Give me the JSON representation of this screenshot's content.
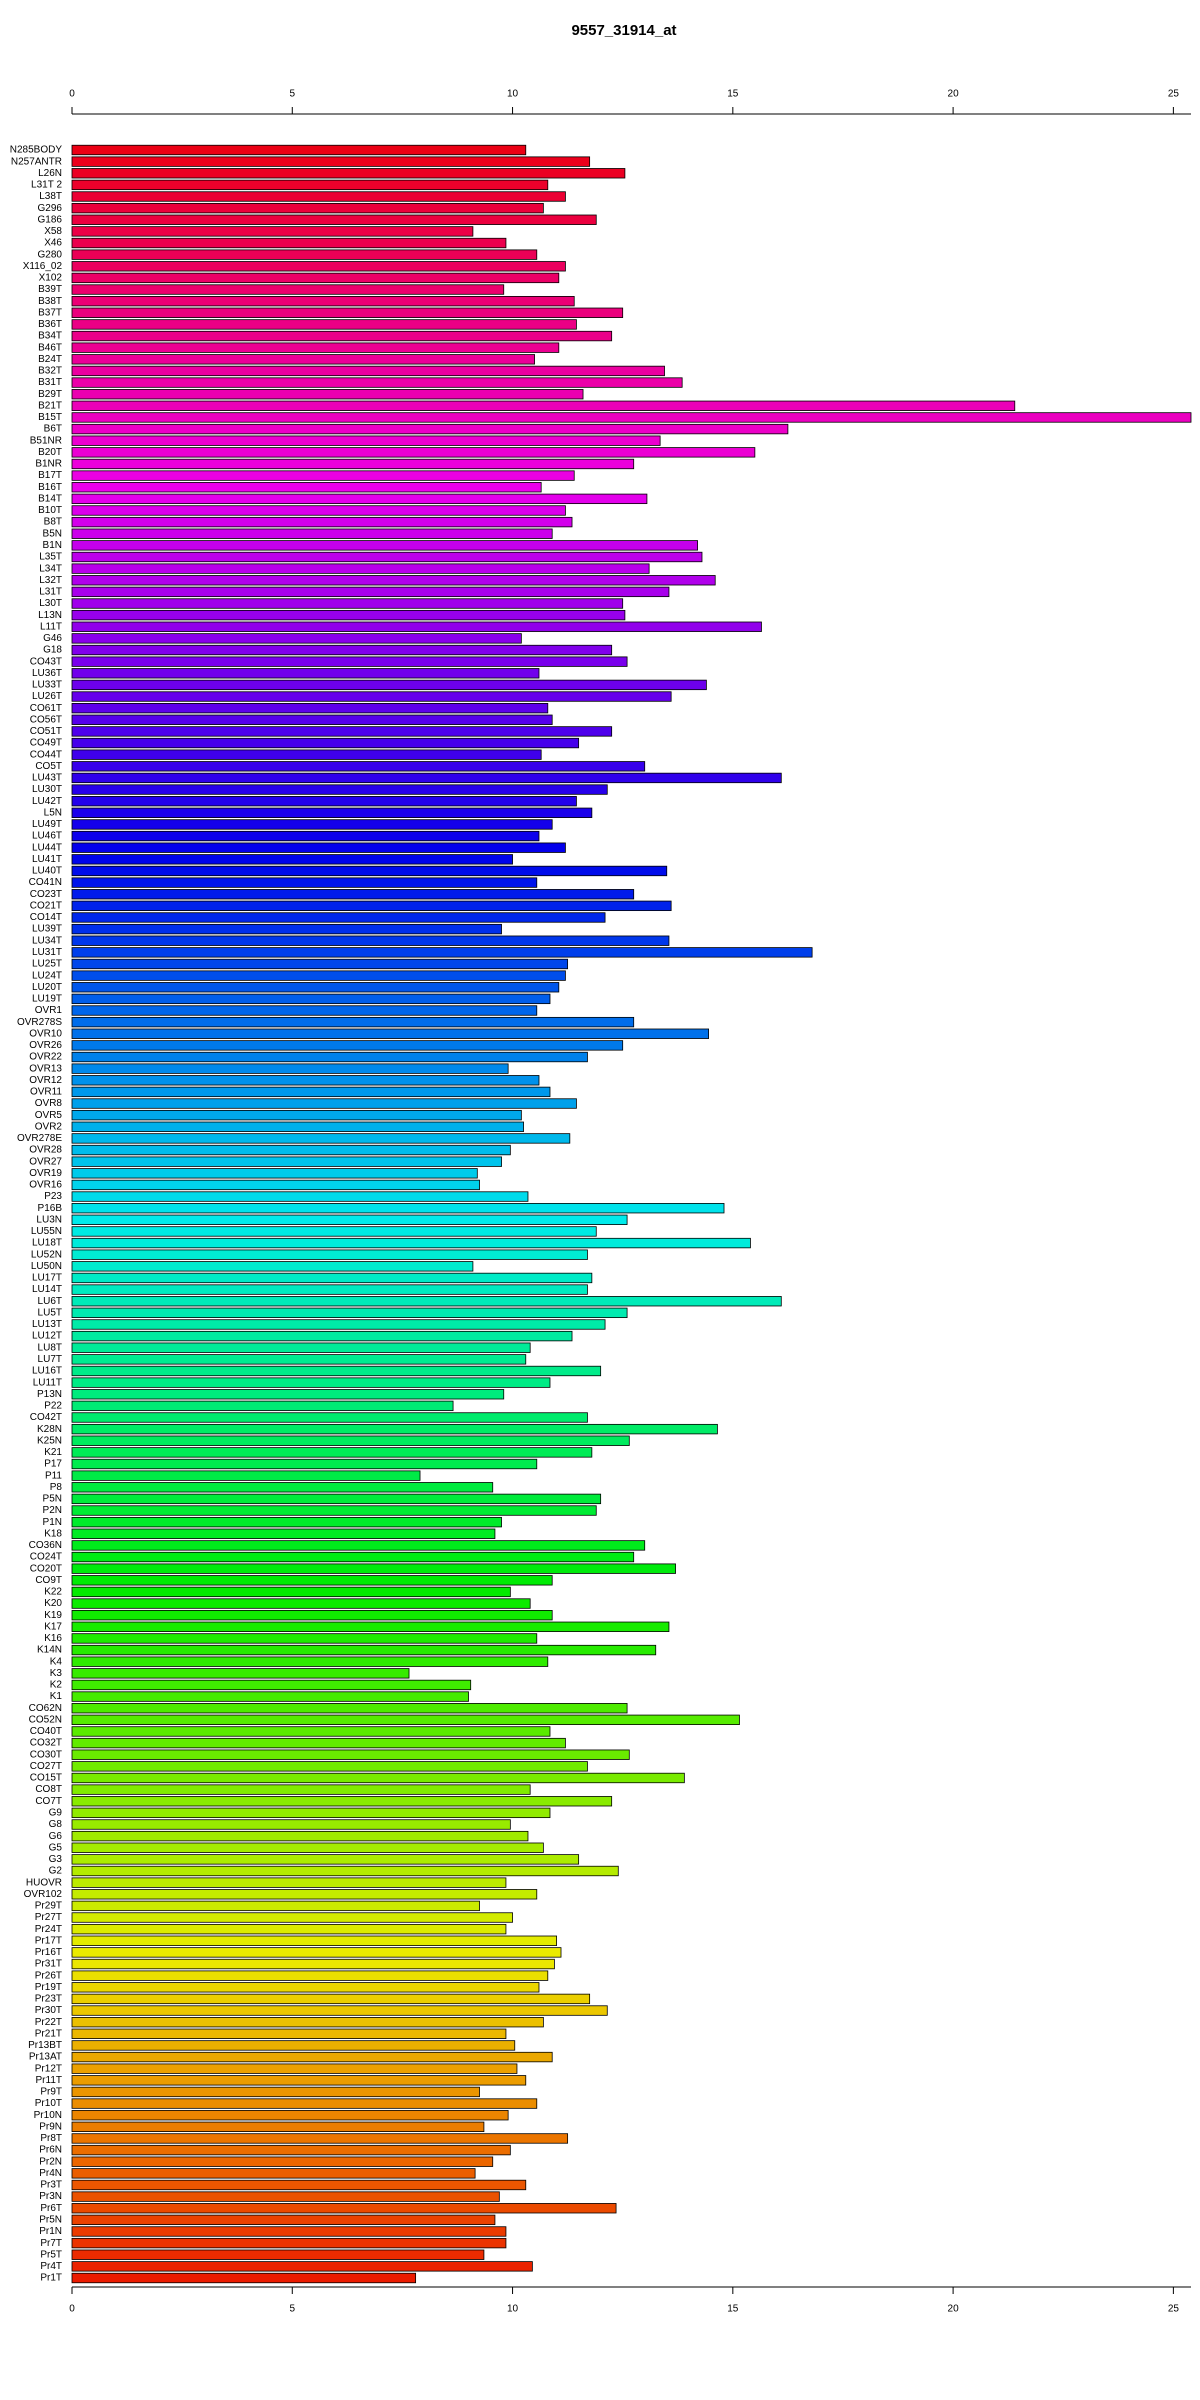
{
  "chart_data": {
    "type": "bar",
    "orientation": "horizontal",
    "title": "9557_31914_at",
    "categories": [
      "N285BODY",
      "N257ANTR",
      "L26N",
      "L31T 2",
      "L38T",
      "G296",
      "G186",
      "X58",
      "X46",
      "G280",
      "X116_02",
      "X102",
      "B39T",
      "B38T",
      "B37T",
      "B36T",
      "B34T",
      "B46T",
      "B24T",
      "B32T",
      "B31T",
      "B29T",
      "B21T",
      "B15T",
      "B6T",
      "B51NR",
      "B20T",
      "B1NR",
      "B17T",
      "B16T",
      "B14T",
      "B10T",
      "B8T",
      "B5N",
      "B1N",
      "L35T",
      "L34T",
      "L32T",
      "L31T",
      "L30T",
      "L13N",
      "L11T",
      "G46",
      "G18",
      "CO43T",
      "LU36T",
      "LU33T",
      "LU26T",
      "CO61T",
      "CO56T",
      "CO51T",
      "CO49T",
      "CO44T",
      "CO5T",
      "LU43T",
      "LU30T",
      "LU42T",
      "L5N",
      "LU49T",
      "LU46T",
      "LU44T",
      "LU41T",
      "LU40T",
      "CO41N",
      "CO23T",
      "CO21T",
      "CO14T",
      "LU39T",
      "LU34T",
      "LU31T",
      "LU25T",
      "LU24T",
      "LU20T",
      "LU19T",
      "OVR1",
      "OVR278S",
      "OVR10",
      "OVR26",
      "OVR22",
      "OVR13",
      "OVR12",
      "OVR11",
      "OVR8",
      "OVR5",
      "OVR2",
      "OVR278E",
      "OVR28",
      "OVR27",
      "OVR19",
      "OVR16",
      "P23",
      "P16B",
      "LU3N",
      "LU55N",
      "LU18T",
      "LU52N",
      "LU50N",
      "LU17T",
      "LU14T",
      "LU6T",
      "LU5T",
      "LU13T",
      "LU12T",
      "LU8T",
      "LU7T",
      "LU16T",
      "LU11T",
      "P13N",
      "P22",
      "CO42T",
      "K28N",
      "K25N",
      "K21",
      "P17",
      "P11",
      "P8",
      "P5N",
      "P2N",
      "P1N",
      "K18",
      "CO36N",
      "CO24T",
      "CO20T",
      "CO9T",
      "K22",
      "K20",
      "K19",
      "K17",
      "K16",
      "K14N",
      "K4",
      "K3",
      "K2",
      "K1",
      "CO62N",
      "CO52N",
      "CO40T",
      "CO32T",
      "CO30T",
      "CO27T",
      "CO15T",
      "CO8T",
      "CO7T",
      "G9",
      "G8",
      "G6",
      "G5",
      "G3",
      "G2",
      "HUOVR",
      "OVR102",
      "Pr29T",
      "Pr27T",
      "Pr24T",
      "Pr17T",
      "Pr16T",
      "Pr31T",
      "Pr26T",
      "Pr19T",
      "Pr23T",
      "Pr30T",
      "Pr22T",
      "Pr21T",
      "Pr13BT",
      "Pr13AT",
      "Pr12T",
      "Pr11T",
      "Pr9T",
      "Pr10T",
      "Pr10N",
      "Pr9N",
      "Pr8T",
      "Pr6N",
      "Pr2N",
      "Pr4N",
      "Pr3T",
      "Pr3N",
      "Pr6T",
      "Pr5N",
      "Pr1N",
      "Pr7T",
      "Pr5T",
      "Pr4T",
      "Pr1T"
    ],
    "values": [
      10.3,
      11.75,
      12.55,
      10.8,
      11.2,
      10.7,
      11.9,
      9.1,
      9.85,
      10.55,
      11.2,
      11.05,
      9.8,
      11.4,
      12.5,
      11.45,
      12.25,
      11.05,
      10.5,
      13.45,
      13.85,
      11.6,
      21.4,
      25.4,
      16.25,
      13.35,
      15.5,
      12.75,
      11.4,
      10.65,
      13.05,
      11.2,
      11.35,
      10.9,
      14.2,
      14.3,
      13.1,
      14.6,
      13.55,
      12.5,
      12.55,
      15.65,
      10.2,
      12.25,
      12.6,
      10.6,
      14.4,
      13.6,
      10.8,
      10.9,
      12.25,
      11.5,
      10.65,
      13.0,
      16.1,
      12.15,
      11.45,
      11.8,
      10.9,
      10.6,
      11.2,
      10.0,
      13.5,
      10.55,
      12.75,
      13.6,
      12.1,
      9.75,
      13.55,
      16.8,
      11.25,
      11.2,
      11.05,
      10.85,
      10.55,
      12.75,
      14.45,
      12.5,
      11.7,
      9.9,
      10.6,
      10.85,
      11.45,
      10.2,
      10.25,
      11.3,
      9.95,
      9.75,
      9.2,
      9.25,
      10.35,
      14.8,
      12.6,
      11.9,
      15.4,
      11.7,
      9.1,
      11.8,
      11.7,
      16.1,
      12.6,
      12.1,
      11.35,
      10.4,
      10.3,
      12.0,
      10.85,
      9.8,
      8.65,
      11.7,
      14.65,
      12.65,
      11.8,
      10.55,
      7.9,
      9.55,
      12.0,
      11.9,
      9.75,
      9.6,
      13.0,
      12.75,
      13.7,
      10.9,
      9.95,
      10.4,
      10.9,
      13.55,
      10.55,
      13.25,
      10.8,
      7.65,
      9.05,
      9.0,
      12.6,
      15.15,
      10.85,
      11.2,
      12.65,
      11.7,
      13.9,
      10.4,
      12.25,
      10.85,
      9.95,
      10.35,
      10.7,
      11.5,
      12.4,
      9.85,
      10.55,
      9.25,
      10.0,
      9.85,
      11.0,
      11.1,
      10.95,
      10.8,
      10.6,
      11.75,
      12.15,
      10.7,
      9.85,
      10.05,
      10.9,
      10.1,
      10.3,
      9.25,
      10.55,
      9.9,
      9.35,
      11.25,
      9.95,
      9.55,
      9.15,
      10.3,
      9.7,
      12.35,
      9.6,
      9.85,
      9.85,
      9.35,
      10.45,
      7.8
    ],
    "colors": [
      "hsl(355,100%,46%)",
      "hsl(353,100%,46%)",
      "hsl(351,100%,46%)",
      "hsl(349,100%,46%)",
      "hsl(347,100%,46%)",
      "hsl(345,100%,46%)",
      "hsl(344,100%,46%)",
      "hsl(342,100%,46%)",
      "hsl(340,100%,46%)",
      "hsl(338,100%,46%)",
      "hsl(336,100%,46%)",
      "hsl(334,100%,46%)",
      "hsl(332,100%,46%)",
      "hsl(330,100%,46%)",
      "hsl(328,100%,46%)",
      "hsl(326,100%,46%)",
      "hsl(325,100%,46%)",
      "hsl(323,100%,46%)",
      "hsl(321,100%,46%)",
      "hsl(319,100%,46%)",
      "hsl(317,100%,46%)",
      "hsl(315,100%,46%)",
      "hsl(313,100%,46%)",
      "hsl(311,100%,46%)",
      "hsl(309,100%,46%)",
      "hsl(307,100%,46%)",
      "hsl(306,100%,46%)",
      "hsl(304,100%,46%)",
      "hsl(302,100%,46%)",
      "hsl(300,100%,46%)",
      "hsl(298,100%,46%)",
      "hsl(296,100%,46%)",
      "hsl(294,100%,46%)",
      "hsl(292,100%,46%)",
      "hsl(290,100%,46%)",
      "hsl(288,100%,46%)",
      "hsl(287,100%,46%)",
      "hsl(285,100%,46%)",
      "hsl(283,100%,46%)",
      "hsl(281,100%,46%)",
      "hsl(279,100%,46%)",
      "hsl(277,100%,46%)",
      "hsl(275,100%,46%)",
      "hsl(273,100%,46%)",
      "hsl(271,100%,46%)",
      "hsl(269,100%,46%)",
      "hsl(268,100%,46%)",
      "hsl(266,100%,46%)",
      "hsl(264,100%,46%)",
      "hsl(262,100%,46%)",
      "hsl(260,100%,46%)",
      "hsl(258,100%,46%)",
      "hsl(256,100%,46%)",
      "hsl(254,100%,46%)",
      "hsl(252,100%,46%)",
      "hsl(250,100%,46%)",
      "hsl(249,100%,46%)",
      "hsl(247,100%,46%)",
      "hsl(245,100%,46%)",
      "hsl(243,100%,46%)",
      "hsl(241,100%,46%)",
      "hsl(239,100%,46%)",
      "hsl(237,100%,46%)",
      "hsl(235,100%,46%)",
      "hsl(233,100%,46%)",
      "hsl(231,100%,46%)",
      "hsl(230,100%,46%)",
      "hsl(228,100%,46%)",
      "hsl(226,100%,46%)",
      "hsl(224,100%,46%)",
      "hsl(222,100%,46%)",
      "hsl(220,100%,46%)",
      "hsl(218,100%,46%)",
      "hsl(216,100%,46%)",
      "hsl(214,100%,46%)",
      "hsl(212,100%,46%)",
      "hsl(211,100%,46%)",
      "hsl(209,100%,46%)",
      "hsl(207,100%,46%)",
      "hsl(205,100%,46%)",
      "hsl(203,100%,46%)",
      "hsl(201,100%,46%)",
      "hsl(199,100%,46%)",
      "hsl(197,100%,46%)",
      "hsl(195,100%,46%)",
      "hsl(193,100%,46%)",
      "hsl(192,100%,46%)",
      "hsl(190,100%,46%)",
      "hsl(188,100%,46%)",
      "hsl(186,100%,46%)",
      "hsl(184,100%,46%)",
      "hsl(182,100%,46%)",
      "hsl(180,100%,46%)",
      "hsl(178,100%,46%)",
      "hsl(176,100%,46%)",
      "hsl(174,100%,46%)",
      "hsl(173,100%,46%)",
      "hsl(171,100%,46%)",
      "hsl(169,100%,46%)",
      "hsl(167,100%,46%)",
      "hsl(165,100%,46%)",
      "hsl(163,100%,46%)",
      "hsl(161,100%,46%)",
      "hsl(159,100%,46%)",
      "hsl(157,100%,46%)",
      "hsl(155,100%,46%)",
      "hsl(154,100%,46%)",
      "hsl(152,100%,46%)",
      "hsl(150,100%,46%)",
      "hsl(148,100%,46%)",
      "hsl(146,100%,46%)",
      "hsl(144,100%,46%)",
      "hsl(142,100%,46%)",
      "hsl(140,100%,46%)",
      "hsl(138,100%,46%)",
      "hsl(136,100%,46%)",
      "hsl(135,100%,46%)",
      "hsl(133,100%,46%)",
      "hsl(131,100%,46%)",
      "hsl(129,100%,46%)",
      "hsl(127,100%,46%)",
      "hsl(125,100%,46%)",
      "hsl(123,100%,46%)",
      "hsl(121,100%,46%)",
      "hsl(119,100%,46%)",
      "hsl(117,100%,46%)",
      "hsl(116,100%,46%)",
      "hsl(114,100%,46%)",
      "hsl(112,100%,46%)",
      "hsl(110,100%,46%)",
      "hsl(108,100%,46%)",
      "hsl(106,100%,46%)",
      "hsl(104,100%,46%)",
      "hsl(102,100%,46%)",
      "hsl(100,100%,46%)",
      "hsl(98,100%,46%)",
      "hsl(97,100%,46%)",
      "hsl(95,100%,46%)",
      "hsl(93,100%,46%)",
      "hsl(91,100%,46%)",
      "hsl(89,100%,46%)",
      "hsl(87,100%,46%)",
      "hsl(85,100%,46%)",
      "hsl(83,100%,46%)",
      "hsl(81,100%,46%)",
      "hsl(79,100%,46%)",
      "hsl(78,100%,46%)",
      "hsl(76,100%,46%)",
      "hsl(74,100%,46%)",
      "hsl(72,100%,46%)",
      "hsl(70,100%,46%)",
      "hsl(68,100%,46%)",
      "hsl(66,100%,46%)",
      "hsl(64,100%,46%)",
      "hsl(62,100%,46%)",
      "hsl(60,100%,46%)",
      "hsl(59,100%,46%)",
      "hsl(57,100%,46%)",
      "hsl(55,100%,46%)",
      "hsl(53,100%,46%)",
      "hsl(51,100%,46%)",
      "hsl(49,100%,46%)",
      "hsl(47,100%,46%)",
      "hsl(45,100%,46%)",
      "hsl(43,100%,46%)",
      "hsl(41,100%,46%)",
      "hsl(40,100%,46%)",
      "hsl(38,100%,46%)",
      "hsl(36,100%,46%)",
      "hsl(34,100%,46%)",
      "hsl(32,100%,46%)",
      "hsl(30,100%,46%)",
      "hsl(28,100%,46%)",
      "hsl(26,100%,46%)",
      "hsl(24,100%,46%)",
      "hsl(22,100%,46%)",
      "hsl(21,100%,46%)",
      "hsl(19,100%,46%)",
      "hsl(17,100%,46%)",
      "hsl(15,100%,46%)",
      "hsl(13,100%,46%)",
      "hsl(11,100%,46%)",
      "hsl(9,100%,46%)",
      "hsl(7,100%,46%)"
    ],
    "xlim": [
      0,
      25.4
    ],
    "xticks": [
      0,
      5,
      10,
      15,
      20,
      25
    ]
  }
}
